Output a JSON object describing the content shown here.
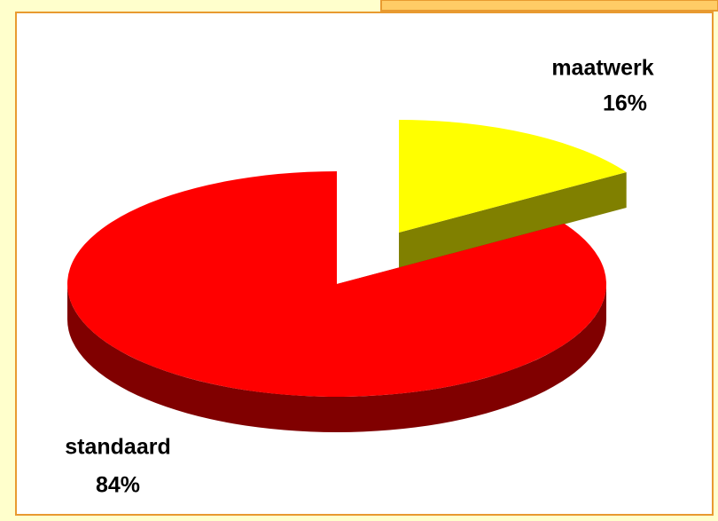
{
  "chart_data": {
    "type": "pie3d",
    "categories": [
      "maatwerk",
      "standaard"
    ],
    "values": [
      16,
      84
    ],
    "value_labels": [
      "16%",
      "84%"
    ],
    "colors": [
      "#ffff00",
      "#ff0000"
    ]
  }
}
